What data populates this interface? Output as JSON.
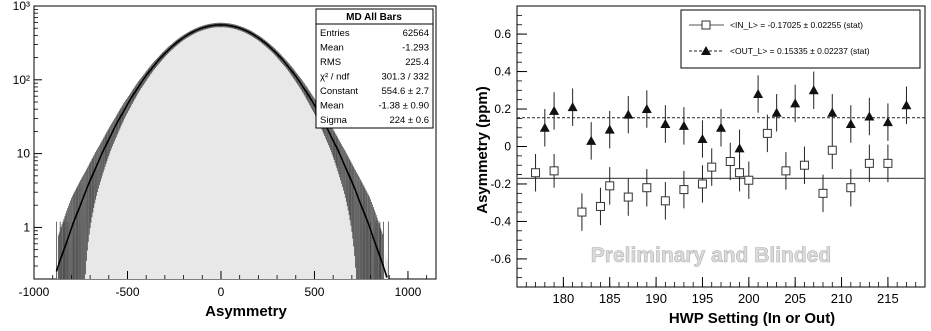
{
  "chart_data": [
    {
      "type": "histogram",
      "xlabel": "Asymmetry",
      "ylabel": "",
      "xlim": [
        -1000,
        1150
      ],
      "ylim": [
        0.2,
        1000
      ],
      "yscale": "log",
      "x_ticks": [
        "-1000",
        "-500",
        "0",
        "500",
        "1000"
      ],
      "y_ticks": [
        "1",
        "10",
        "10²",
        "10³"
      ],
      "series": [
        {
          "type": "histogram",
          "note_fill": "light grey"
        },
        {
          "type": "gaussian-fit",
          "constant": 554.6,
          "mean": -1.38,
          "sigma": 224
        }
      ],
      "stats_box": {
        "title": "MD All Bars",
        "rows": [
          {
            "label": "Entries",
            "value": "62564"
          },
          {
            "label": "Mean",
            "value": "-1.293"
          },
          {
            "label": "RMS",
            "value": "225.4"
          },
          {
            "label": "χ² / ndf",
            "value": "301.3 / 332"
          },
          {
            "label": "Constant",
            "value": "554.6 ± 2.7"
          },
          {
            "label": "Mean",
            "value": "-1.38 ± 0.90"
          },
          {
            "label": "Sigma",
            "value": "224 ± 0.6"
          }
        ]
      }
    },
    {
      "type": "scatter",
      "xlabel": "HWP Setting (In or Out)",
      "ylabel": "Asymmetry (ppm)",
      "xlim": [
        175,
        219
      ],
      "ylim": [
        -0.75,
        0.75
      ],
      "x_ticks": [
        180,
        185,
        190,
        195,
        200,
        205,
        210,
        215
      ],
      "y_ticks": [
        -0.6,
        -0.4,
        -0.2,
        0,
        0.2,
        0.4,
        0.6
      ],
      "watermark": "Preliminary and Blinded",
      "series": [
        {
          "name": "IN_L",
          "legend_text": "<IN_L> = -0.17025  ± 0.02255 (stat)",
          "marker": "open-square",
          "fit_line": -0.17025,
          "line_style": "solid",
          "points": [
            {
              "x": 177,
              "y": -0.14,
              "err": 0.1
            },
            {
              "x": 179,
              "y": -0.13,
              "err": 0.09
            },
            {
              "x": 182,
              "y": -0.35,
              "err": 0.1
            },
            {
              "x": 184,
              "y": -0.32,
              "err": 0.1
            },
            {
              "x": 185,
              "y": -0.21,
              "err": 0.1
            },
            {
              "x": 187,
              "y": -0.27,
              "err": 0.1
            },
            {
              "x": 189,
              "y": -0.22,
              "err": 0.1
            },
            {
              "x": 191,
              "y": -0.29,
              "err": 0.1
            },
            {
              "x": 193,
              "y": -0.23,
              "err": 0.1
            },
            {
              "x": 195,
              "y": -0.2,
              "err": 0.1
            },
            {
              "x": 196,
              "y": -0.11,
              "err": 0.1
            },
            {
              "x": 198,
              "y": -0.08,
              "err": 0.1
            },
            {
              "x": 199,
              "y": -0.14,
              "err": 0.1
            },
            {
              "x": 200,
              "y": -0.18,
              "err": 0.1
            },
            {
              "x": 202,
              "y": 0.07,
              "err": 0.1
            },
            {
              "x": 204,
              "y": -0.13,
              "err": 0.1
            },
            {
              "x": 206,
              "y": -0.1,
              "err": 0.1
            },
            {
              "x": 208,
              "y": -0.25,
              "err": 0.1
            },
            {
              "x": 209,
              "y": -0.02,
              "err": 0.1
            },
            {
              "x": 211,
              "y": -0.22,
              "err": 0.1
            },
            {
              "x": 213,
              "y": -0.09,
              "err": 0.1
            },
            {
              "x": 215,
              "y": -0.09,
              "err": 0.1
            }
          ]
        },
        {
          "name": "OUT_L",
          "legend_text": "<OUT_L> = 0.15335  ± 0.02237 (stat)",
          "marker": "filled-triangle",
          "fit_line": 0.15335,
          "line_style": "dashed",
          "points": [
            {
              "x": 178,
              "y": 0.1,
              "err": 0.1
            },
            {
              "x": 179,
              "y": 0.19,
              "err": 0.1
            },
            {
              "x": 181,
              "y": 0.21,
              "err": 0.1
            },
            {
              "x": 183,
              "y": 0.03,
              "err": 0.1
            },
            {
              "x": 185,
              "y": 0.09,
              "err": 0.1
            },
            {
              "x": 187,
              "y": 0.17,
              "err": 0.1
            },
            {
              "x": 189,
              "y": 0.2,
              "err": 0.1
            },
            {
              "x": 191,
              "y": 0.12,
              "err": 0.1
            },
            {
              "x": 193,
              "y": 0.11,
              "err": 0.1
            },
            {
              "x": 195,
              "y": 0.04,
              "err": 0.1
            },
            {
              "x": 197,
              "y": 0.1,
              "err": 0.1
            },
            {
              "x": 199,
              "y": -0.01,
              "err": 0.1
            },
            {
              "x": 201,
              "y": 0.28,
              "err": 0.1
            },
            {
              "x": 203,
              "y": 0.18,
              "err": 0.1
            },
            {
              "x": 205,
              "y": 0.23,
              "err": 0.1
            },
            {
              "x": 207,
              "y": 0.3,
              "err": 0.1
            },
            {
              "x": 209,
              "y": 0.18,
              "err": 0.1
            },
            {
              "x": 211,
              "y": 0.12,
              "err": 0.1
            },
            {
              "x": 213,
              "y": 0.16,
              "err": 0.1
            },
            {
              "x": 215,
              "y": 0.13,
              "err": 0.1
            },
            {
              "x": 217,
              "y": 0.22,
              "err": 0.1
            }
          ]
        }
      ]
    }
  ]
}
